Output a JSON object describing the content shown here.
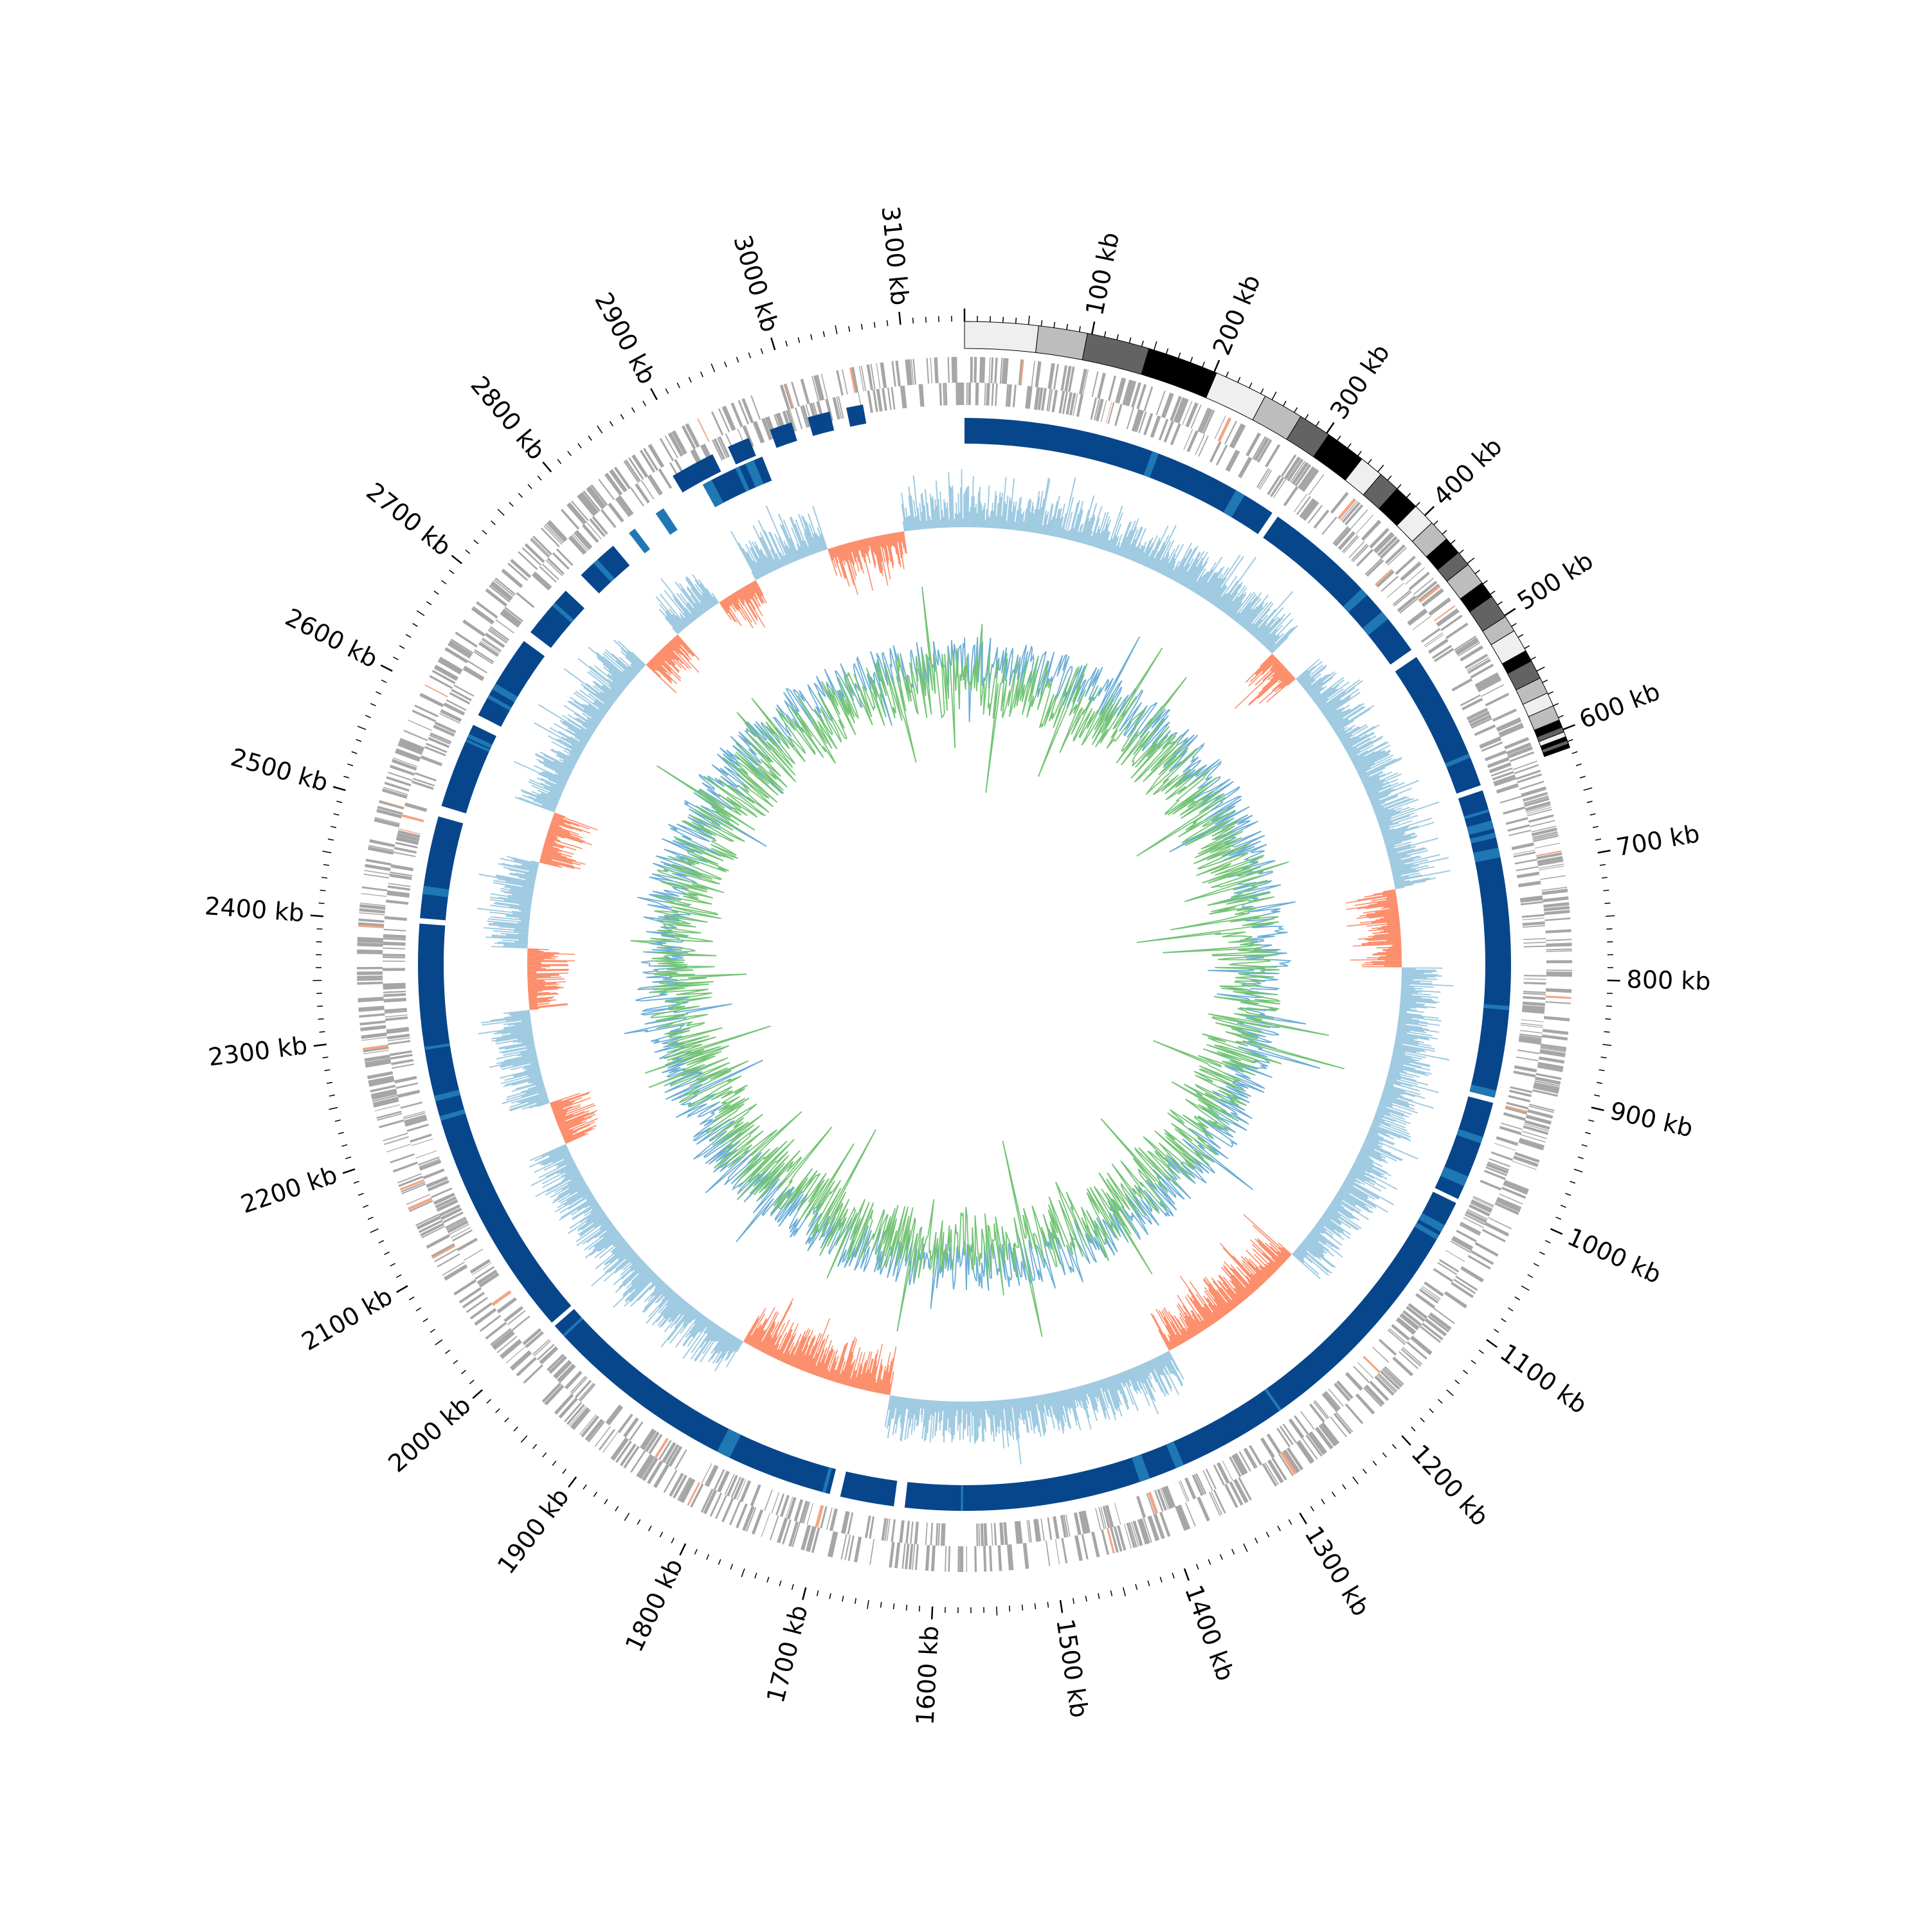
{
  "chart_data": {
    "type": "circular-genome-map",
    "genome_length_kb": 3150,
    "tick_labels": [
      {
        "kb": 100,
        "label": "100 kb"
      },
      {
        "kb": 200,
        "label": "200 kb"
      },
      {
        "kb": 300,
        "label": "300 kb"
      },
      {
        "kb": 400,
        "label": "400 kb"
      },
      {
        "kb": 500,
        "label": "500 kb"
      },
      {
        "kb": 600,
        "label": "600 kb"
      },
      {
        "kb": 700,
        "label": "700 kb"
      },
      {
        "kb": 800,
        "label": "800 kb"
      },
      {
        "kb": 900,
        "label": "900 kb"
      },
      {
        "kb": 1000,
        "label": "1000 kb"
      },
      {
        "kb": 1100,
        "label": "1100 kb"
      },
      {
        "kb": 1200,
        "label": "1200 kb"
      },
      {
        "kb": 1300,
        "label": "1300 kb"
      },
      {
        "kb": 1400,
        "label": "1400 kb"
      },
      {
        "kb": 1500,
        "label": "1500 kb"
      },
      {
        "kb": 1600,
        "label": "1600 kb"
      },
      {
        "kb": 1700,
        "label": "1700 kb"
      },
      {
        "kb": 1800,
        "label": "1800 kb"
      },
      {
        "kb": 1900,
        "label": "1900 kb"
      },
      {
        "kb": 2000,
        "label": "2000 kb"
      },
      {
        "kb": 2100,
        "label": "2100 kb"
      },
      {
        "kb": 2200,
        "label": "2200 kb"
      },
      {
        "kb": 2300,
        "label": "2300 kb"
      },
      {
        "kb": 2400,
        "label": "2400 kb"
      },
      {
        "kb": 2500,
        "label": "2500 kb"
      },
      {
        "kb": 2600,
        "label": "2600 kb"
      },
      {
        "kb": 2700,
        "label": "2700 kb"
      },
      {
        "kb": 2800,
        "label": "2800 kb"
      },
      {
        "kb": 2900,
        "label": "2900 kb"
      },
      {
        "kb": 3000,
        "label": "3000 kb"
      },
      {
        "kb": 3100,
        "label": "3100 kb"
      }
    ],
    "contigs": [
      {
        "start": 0,
        "end": 580,
        "shade": "#efefef"
      },
      {
        "start": 580,
        "end": 965,
        "shade": "#bdbdbd"
      },
      {
        "start": 965,
        "end": 1460,
        "shade": "#636363"
      },
      {
        "start": 1460,
        "end": 2020,
        "shade": "#000000"
      },
      {
        "start": 2020,
        "end": 2440,
        "shade": "#efefef"
      },
      {
        "start": 2440,
        "end": 2760,
        "shade": "#bdbdbd"
      },
      {
        "start": 2760,
        "end": 3020,
        "shade": "#636363"
      },
      {
        "start": 3020,
        "end": 3340,
        "shade": "#000000"
      },
      {
        "start": 3340,
        "end": 3530,
        "shade": "#efefef"
      },
      {
        "start": 3530,
        "end": 3700,
        "shade": "#636363"
      },
      {
        "start": 3700,
        "end": 3900,
        "shade": "#000000"
      },
      {
        "start": 3900,
        "end": 4080,
        "shade": "#efefef"
      },
      {
        "start": 4080,
        "end": 4250,
        "shade": "#bdbdbd"
      },
      {
        "start": 4250,
        "end": 4390,
        "shade": "#000000"
      },
      {
        "start": 4390,
        "end": 4510,
        "shade": "#636363"
      },
      {
        "start": 4510,
        "end": 4690,
        "shade": "#bdbdbd"
      },
      {
        "start": 4690,
        "end": 4820,
        "shade": "#000000"
      },
      {
        "start": 4820,
        "end": 5010,
        "shade": "#636363"
      },
      {
        "start": 5010,
        "end": 5140,
        "shade": "#bdbdbd"
      },
      {
        "start": 5140,
        "end": 5320,
        "shade": "#efefef"
      },
      {
        "start": 5320,
        "end": 5410,
        "shade": "#000000"
      },
      {
        "start": 5410,
        "end": 5560,
        "shade": "#636363"
      },
      {
        "start": 5560,
        "end": 5690,
        "shade": "#bdbdbd"
      },
      {
        "start": 5690,
        "end": 5800,
        "shade": "#efefef"
      },
      {
        "start": 5800,
        "end": 5920,
        "shade": "#bdbdbd"
      },
      {
        "start": 5920,
        "end": 5980,
        "shade": "#000000"
      },
      {
        "start": 5980,
        "end": 6020,
        "shade": "#636363"
      },
      {
        "start": 6020,
        "end": 6060,
        "shade": "#efefef"
      },
      {
        "start": 6060,
        "end": 6090,
        "shade": "#000000"
      },
      {
        "start": 6090,
        "end": 6120,
        "shade": "#636363"
      },
      {
        "start": 6120,
        "end": 6150,
        "shade": "#000000"
      }
    ],
    "contig_scale_note": "contig boundaries listed in tenths of kb (x0.1 kb)",
    "tracks": [
      {
        "name": "",
        "kind": "feature-ticks",
        "color": "#a6a6a6",
        "accent": "#f4a582"
      },
      {
        "name": "",
        "kind": "blocks",
        "color": "#08468c",
        "accent": "#1f78b4"
      },
      {
        "name": "",
        "kind": "skew",
        "positive_color": "#9ecae1",
        "negative_color": "#fc8d6a"
      },
      {
        "name": "",
        "kind": "line",
        "color": "#6baed6"
      },
      {
        "name": "",
        "kind": "line",
        "color": "#74c476"
      }
    ]
  }
}
